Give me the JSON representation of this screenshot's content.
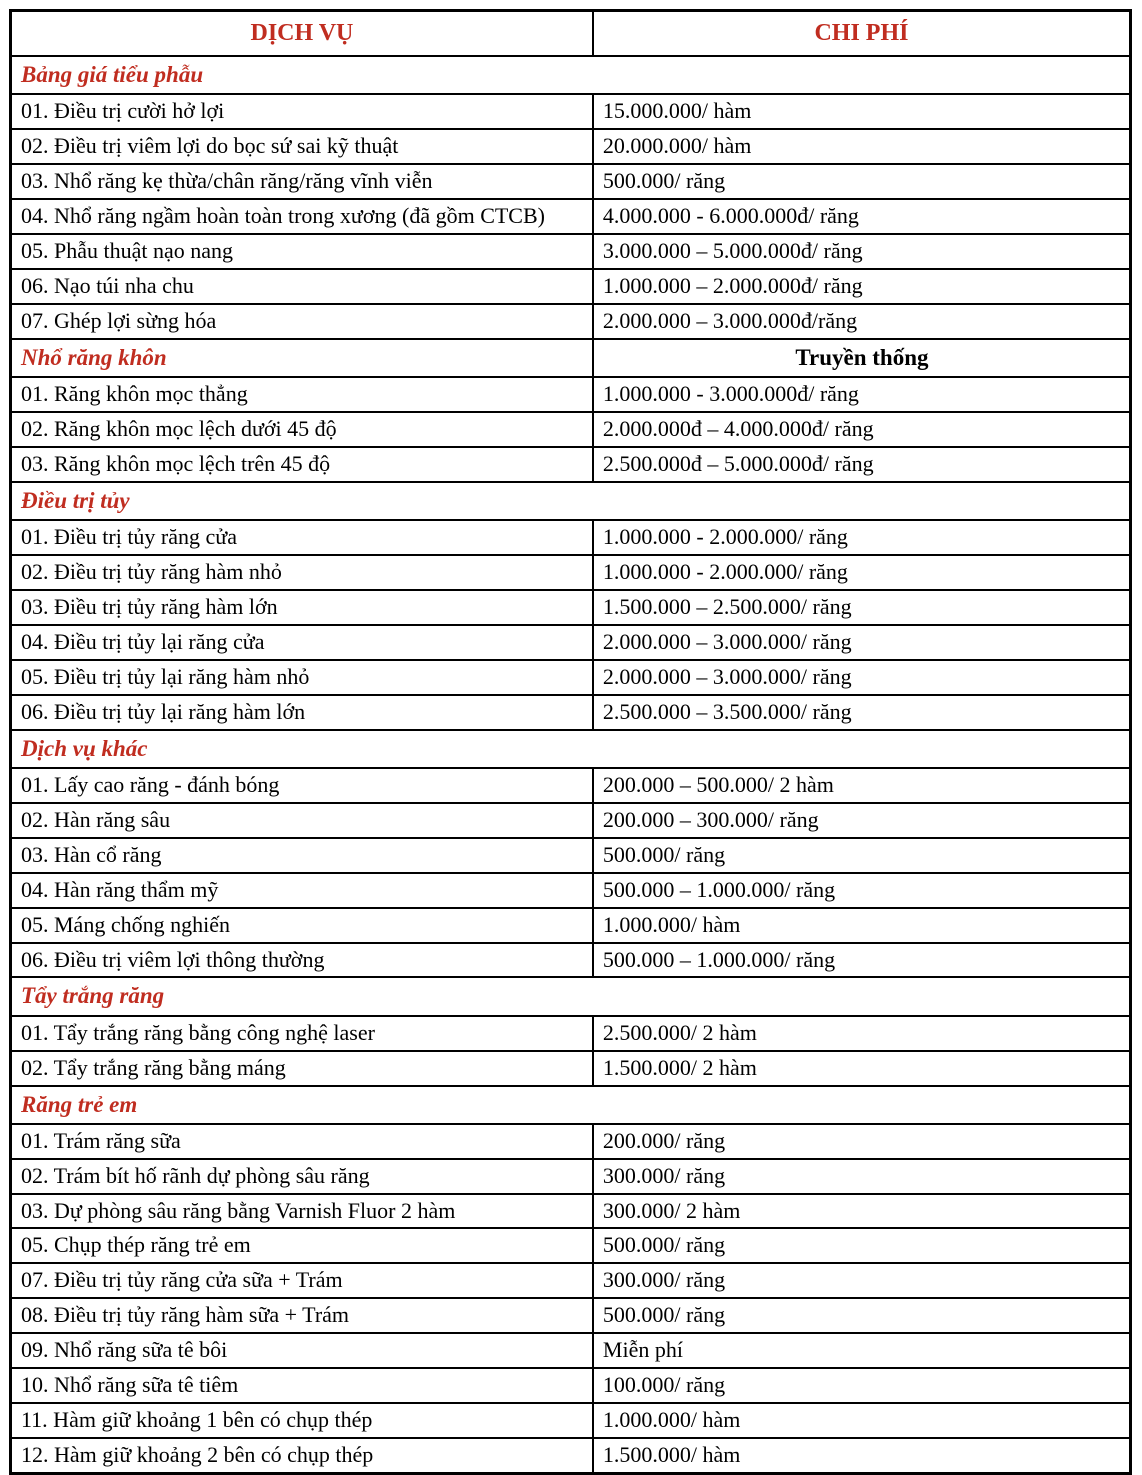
{
  "colors": {
    "accent_red": "#C02D20",
    "border": "#000000",
    "text": "#000000",
    "background": "#FFFFFF"
  },
  "header": {
    "service_col": "DỊCH VỤ",
    "cost_col": "CHI PHÍ"
  },
  "sections": [
    {
      "title": "Bảng giá tiểu phẫu",
      "cost_header": "",
      "rows": [
        {
          "service": "01. Điều trị cười hở lợi",
          "cost": "15.000.000/ hàm"
        },
        {
          "service": "02. Điều trị viêm lợi do bọc sứ sai kỹ thuật",
          "cost": "20.000.000/ hàm"
        },
        {
          "service": "03. Nhổ răng kẹ thừa/chân răng/răng vĩnh viễn",
          "cost": "500.000/ răng"
        },
        {
          "service": "04. Nhổ răng ngầm hoàn toàn trong xương (đã gồm CTCB)",
          "cost": "4.000.000 - 6.000.000đ/ răng"
        },
        {
          "service": "05. Phẫu thuật nạo nang",
          "cost": "3.000.000 – 5.000.000đ/ răng"
        },
        {
          "service": "06. Nạo túi nha chu",
          "cost": "1.000.000 – 2.000.000đ/ răng"
        },
        {
          "service": "07. Ghép lợi sừng hóa",
          "cost": "2.000.000 – 3.000.000đ/răng"
        }
      ]
    },
    {
      "title": "Nhổ răng khôn",
      "cost_header": "Truyền thống",
      "rows": [
        {
          "service": "01. Răng khôn mọc thẳng",
          "cost": "1.000.000 - 3.000.000đ/ răng"
        },
        {
          "service": "02. Răng khôn mọc lệch dưới 45 độ",
          "cost": "2.000.000đ – 4.000.000đ/ răng"
        },
        {
          "service": "03. Răng khôn mọc lệch trên 45 độ",
          "cost": "2.500.000đ – 5.000.000đ/ răng"
        }
      ]
    },
    {
      "title": "Điều trị tủy",
      "cost_header": "",
      "rows": [
        {
          "service": "01. Điều trị tủy răng cửa",
          "cost": "1.000.000 - 2.000.000/ răng"
        },
        {
          "service": "02. Điều trị tủy răng hàm nhỏ",
          "cost": "1.000.000 - 2.000.000/ răng"
        },
        {
          "service": "03. Điều trị tủy răng hàm lớn",
          "cost": "1.500.000 – 2.500.000/ răng"
        },
        {
          "service": "04. Điều trị tủy lại răng cửa",
          "cost": "2.000.000 – 3.000.000/ răng"
        },
        {
          "service": "05. Điều trị tủy lại răng hàm nhỏ",
          "cost": "2.000.000 – 3.000.000/ răng"
        },
        {
          "service": "06. Điều trị tủy lại răng hàm lớn",
          "cost": "2.500.000 – 3.500.000/ răng"
        }
      ]
    },
    {
      "title": "Dịch vụ khác",
      "cost_header": "",
      "rows": [
        {
          "service": "01. Lấy cao răng - đánh bóng",
          "cost": "200.000 – 500.000/ 2 hàm"
        },
        {
          "service": "02. Hàn răng sâu",
          "cost": "200.000 – 300.000/ răng"
        },
        {
          "service": "03. Hàn cổ răng",
          "cost": "500.000/ răng"
        },
        {
          "service": "04. Hàn răng thẩm mỹ",
          "cost": "500.000 – 1.000.000/ răng"
        },
        {
          "service": "05. Máng chống nghiến",
          "cost": "1.000.000/ hàm"
        },
        {
          "service": "06. Điều trị viêm lợi thông thường",
          "cost": "500.000 – 1.000.000/ răng"
        }
      ]
    },
    {
      "title": "Tẩy trắng răng",
      "cost_header": "",
      "rows": [
        {
          "service": "01. Tẩy trắng răng bằng công nghệ laser",
          "cost": "2.500.000/ 2 hàm"
        },
        {
          "service": "02. Tẩy trắng răng bằng máng",
          "cost": "1.500.000/ 2 hàm"
        }
      ]
    },
    {
      "title": "Răng trẻ em",
      "cost_header": "",
      "rows": [
        {
          "service": "01. Trám răng sữa",
          "cost": "200.000/ răng"
        },
        {
          "service": "02. Trám bít hố rãnh dự phòng sâu răng",
          "cost": "300.000/ răng"
        },
        {
          "service": "03. Dự phòng sâu răng bằng Varnish Fluor 2 hàm",
          "cost": "300.000/ 2 hàm"
        },
        {
          "service": "05. Chụp thép răng trẻ em",
          "cost": "500.000/ răng"
        },
        {
          "service": "07. Điều trị tủy răng cửa sữa + Trám",
          "cost": "300.000/ răng"
        },
        {
          "service": "08. Điều trị tủy răng hàm sữa + Trám",
          "cost": "500.000/ răng"
        },
        {
          "service": "09. Nhổ răng sữa tê bôi",
          "cost": "Miễn phí"
        },
        {
          "service": "10. Nhổ răng sữa tê tiêm",
          "cost": "100.000/ răng"
        },
        {
          "service": "11. Hàm giữ khoảng 1 bên có chụp thép",
          "cost": "1.000.000/ hàm"
        },
        {
          "service": "12. Hàm giữ khoảng 2 bên có chụp thép",
          "cost": "1.500.000/ hàm"
        }
      ]
    }
  ]
}
